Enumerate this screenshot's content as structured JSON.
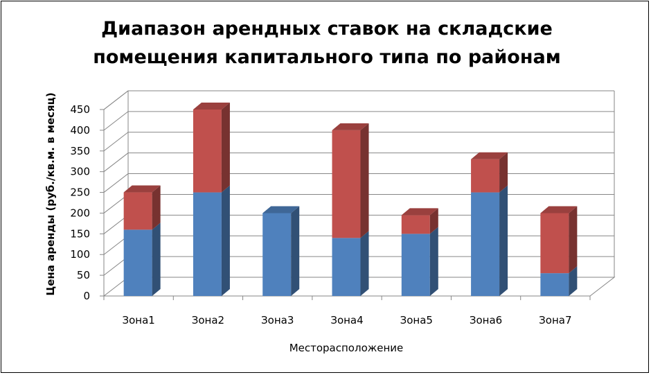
{
  "chart_data": {
    "type": "bar",
    "stacked": true,
    "style": "3d-column",
    "title_lines": [
      "Диапазон арендных ставок на складские",
      "помещения капитального типа по районам"
    ],
    "xlabel": "Месторасположение",
    "ylabel": "Цена аренды (руб./кв.м. в месяц)",
    "categories": [
      "Зона1",
      "Зона2",
      "Зона3",
      "Зона4",
      "Зона5",
      "Зона6",
      "Зона7"
    ],
    "series": [
      {
        "values": [
          160,
          250,
          200,
          140,
          150,
          250,
          55
        ],
        "color": "#4F81BD"
      },
      {
        "values": [
          90,
          200,
          0,
          260,
          45,
          80,
          145
        ],
        "color": "#C0504D"
      }
    ],
    "ylim": [
      0,
      450
    ],
    "yticks": [
      0,
      50,
      100,
      150,
      200,
      250,
      300,
      350,
      400,
      450
    ],
    "grid": true,
    "legend": "none"
  }
}
